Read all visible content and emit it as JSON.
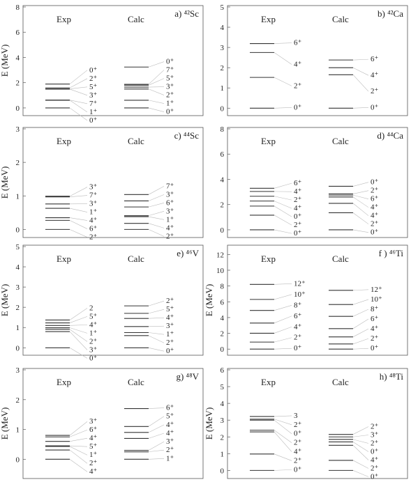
{
  "chart_data": [
    {
      "type": "level-scheme",
      "title": "a) ⁴²Sc",
      "ylabel": "E (MeV)",
      "ylim": [
        -0.5,
        8
      ],
      "yticks": [
        "0",
        "2",
        "4",
        "6",
        "8"
      ],
      "columns": [
        {
          "name": "Exp",
          "levels": [
            {
              "energy": 0.0,
              "spin": "0⁺"
            },
            {
              "energy": 0.61,
              "spin": "1⁺"
            },
            {
              "energy": 0.62,
              "spin": "7⁺"
            },
            {
              "energy": 1.49,
              "spin": "3⁺"
            },
            {
              "energy": 1.51,
              "spin": "5⁺"
            },
            {
              "energy": 1.59,
              "spin": "2⁺"
            },
            {
              "energy": 1.89,
              "spin": "0⁺"
            }
          ]
        },
        {
          "name": "Calc",
          "levels": [
            {
              "energy": 0.0,
              "spin": "0⁺"
            },
            {
              "energy": 0.61,
              "spin": "1⁺"
            },
            {
              "energy": 1.5,
              "spin": "2⁺"
            },
            {
              "energy": 1.65,
              "spin": "3⁺"
            },
            {
              "energy": 1.8,
              "spin": "5⁺"
            },
            {
              "energy": 1.87,
              "spin": "7⁺"
            },
            {
              "energy": 3.24,
              "spin": "0⁺"
            }
          ]
        }
      ]
    },
    {
      "type": "level-scheme",
      "title": "b) ⁴²Ca",
      "ylabel": "",
      "ylim": [
        -0.3,
        5
      ],
      "yticks": [
        "0",
        "1",
        "2",
        "3",
        "4",
        "5"
      ],
      "columns": [
        {
          "name": "Exp",
          "levels": [
            {
              "energy": 0.0,
              "spin": "0⁺"
            },
            {
              "energy": 1.52,
              "spin": "2⁺"
            },
            {
              "energy": 2.75,
              "spin": "4⁺"
            },
            {
              "energy": 3.19,
              "spin": "6⁺"
            }
          ]
        },
        {
          "name": "Calc",
          "levels": [
            {
              "energy": 0.0,
              "spin": "0⁺"
            },
            {
              "energy": 1.65,
              "spin": "2⁺"
            },
            {
              "energy": 2.0,
              "spin": "4⁺"
            },
            {
              "energy": 2.38,
              "spin": "6⁺"
            }
          ]
        }
      ]
    },
    {
      "type": "level-scheme",
      "title": "c) ⁴⁴Sc",
      "ylabel": "E (MeV)",
      "ylim": [
        -0.2,
        3
      ],
      "yticks": [
        "0",
        "1",
        "2",
        "3"
      ],
      "columns": [
        {
          "name": "Exp",
          "levels": [
            {
              "energy": 0.0,
              "spin": "2⁺"
            },
            {
              "energy": 0.27,
              "spin": "6⁺"
            },
            {
              "energy": 0.35,
              "spin": "4⁺"
            },
            {
              "energy": 0.63,
              "spin": "1⁺"
            },
            {
              "energy": 0.76,
              "spin": "3⁺"
            },
            {
              "energy": 0.97,
              "spin": "7⁺"
            },
            {
              "energy": 0.99,
              "spin": "3⁺"
            }
          ]
        },
        {
          "name": "Calc",
          "levels": [
            {
              "energy": 0.0,
              "spin": "2⁺"
            },
            {
              "energy": 0.18,
              "spin": "4⁺"
            },
            {
              "energy": 0.38,
              "spin": "1⁺"
            },
            {
              "energy": 0.41,
              "spin": "3⁺"
            },
            {
              "energy": 0.67,
              "spin": "6⁺"
            },
            {
              "energy": 0.85,
              "spin": "3⁺"
            },
            {
              "energy": 1.04,
              "spin": "7⁺"
            }
          ]
        }
      ]
    },
    {
      "type": "level-scheme",
      "title": "d) ⁴⁴Ca",
      "ylabel": "",
      "ylim": [
        -0.5,
        8
      ],
      "yticks": [
        "0",
        "2",
        "4",
        "6",
        "8"
      ],
      "columns": [
        {
          "name": "Exp",
          "levels": [
            {
              "energy": 0.0,
              "spin": "0⁺"
            },
            {
              "energy": 1.16,
              "spin": "2⁺"
            },
            {
              "energy": 1.88,
              "spin": "0⁺"
            },
            {
              "energy": 2.28,
              "spin": "4⁺"
            },
            {
              "energy": 2.66,
              "spin": "2⁺"
            },
            {
              "energy": 3.04,
              "spin": "4⁺"
            },
            {
              "energy": 3.29,
              "spin": "6⁺"
            }
          ]
        },
        {
          "name": "Calc",
          "levels": [
            {
              "energy": 0.0,
              "spin": "0⁺"
            },
            {
              "energy": 1.35,
              "spin": "2⁺"
            },
            {
              "energy": 2.1,
              "spin": "4⁺"
            },
            {
              "energy": 2.6,
              "spin": "4⁺"
            },
            {
              "energy": 2.75,
              "spin": "6⁺"
            },
            {
              "energy": 2.85,
              "spin": "2⁺"
            },
            {
              "energy": 3.45,
              "spin": "0⁺"
            }
          ]
        }
      ]
    },
    {
      "type": "level-scheme",
      "title": "e) ⁴⁶V",
      "ylabel": "E (MeV)",
      "ylim": [
        -0.3,
        5
      ],
      "yticks": [
        "0",
        "1",
        "2",
        "3",
        "4",
        "5"
      ],
      "columns": [
        {
          "name": "Exp",
          "levels": [
            {
              "energy": 0.0,
              "spin": "0⁺"
            },
            {
              "energy": 0.8,
              "spin": "3⁺"
            },
            {
              "energy": 0.91,
              "spin": "2⁺"
            },
            {
              "energy": 0.99,
              "spin": "1⁺"
            },
            {
              "energy": 1.1,
              "spin": "4⁺"
            },
            {
              "energy": 1.23,
              "spin": "5⁺"
            },
            {
              "energy": 1.37,
              "spin": "2"
            }
          ]
        },
        {
          "name": "Calc",
          "levels": [
            {
              "energy": 0.0,
              "spin": "0⁺"
            },
            {
              "energy": 0.6,
              "spin": "2⁺"
            },
            {
              "energy": 0.75,
              "spin": "1⁺"
            },
            {
              "energy": 1.05,
              "spin": "3⁺"
            },
            {
              "energy": 1.45,
              "spin": "4⁺"
            },
            {
              "energy": 1.7,
              "spin": "5⁺"
            },
            {
              "energy": 2.07,
              "spin": "2⁺"
            }
          ]
        }
      ]
    },
    {
      "type": "level-scheme",
      "title": "f ) ⁴⁶Ti",
      "ylabel": "E (MeV)",
      "ylim": [
        -0.6,
        13
      ],
      "yticks": [
        "0",
        "2",
        "4",
        "6",
        "8",
        "10",
        "12"
      ],
      "columns": [
        {
          "name": "Exp",
          "levels": [
            {
              "energy": 0.0,
              "spin": "0⁺"
            },
            {
              "energy": 0.89,
              "spin": "2⁺"
            },
            {
              "energy": 2.01,
              "spin": "4⁺"
            },
            {
              "energy": 3.3,
              "spin": "6⁺"
            },
            {
              "energy": 4.9,
              "spin": "8⁺"
            },
            {
              "energy": 6.3,
              "spin": "10⁺"
            },
            {
              "energy": 8.2,
              "spin": "12⁺"
            }
          ]
        },
        {
          "name": "Calc",
          "levels": [
            {
              "energy": 0.0,
              "spin": "0⁺"
            },
            {
              "energy": 0.65,
              "spin": "2⁺"
            },
            {
              "energy": 1.55,
              "spin": "4⁺"
            },
            {
              "energy": 2.6,
              "spin": "6⁺"
            },
            {
              "energy": 4.15,
              "spin": "8⁺"
            },
            {
              "energy": 5.65,
              "spin": "10⁺"
            },
            {
              "energy": 7.45,
              "spin": "12⁺"
            }
          ]
        }
      ]
    },
    {
      "type": "level-scheme",
      "title": "g) ⁴⁸V",
      "ylabel": "E (MeV)",
      "ylim": [
        -0.6,
        3
      ],
      "yticks": [
        "0",
        "1",
        "2",
        "3"
      ],
      "columns": [
        {
          "name": "Exp",
          "levels": [
            {
              "energy": 0.0,
              "spin": "4⁺"
            },
            {
              "energy": 0.31,
              "spin": "2⁺"
            },
            {
              "energy": 0.43,
              "spin": "1⁺"
            },
            {
              "energy": 0.45,
              "spin": "5⁺"
            },
            {
              "energy": 0.6,
              "spin": "4⁺"
            },
            {
              "energy": 0.75,
              "spin": "6⁺"
            },
            {
              "energy": 0.8,
              "spin": "3⁺"
            }
          ]
        },
        {
          "name": "Calc",
          "levels": [
            {
              "energy": 0.0,
              "spin": "1⁺"
            },
            {
              "energy": 0.25,
              "spin": "2⁺"
            },
            {
              "energy": 0.3,
              "spin": "3⁺"
            },
            {
              "energy": 0.7,
              "spin": "4⁺"
            },
            {
              "energy": 0.9,
              "spin": "4⁺"
            },
            {
              "energy": 1.1,
              "spin": "5⁺"
            },
            {
              "energy": 1.7,
              "spin": "6⁺"
            }
          ]
        }
      ]
    },
    {
      "type": "level-scheme",
      "title": "h) ⁴⁸Ti",
      "ylabel": "E (MeV)",
      "ylim": [
        -0.4,
        6
      ],
      "yticks": [
        "0",
        "1",
        "2",
        "3",
        "4",
        "5",
        "6"
      ],
      "columns": [
        {
          "name": "Exp",
          "levels": [
            {
              "energy": 0.0,
              "spin": "0⁺"
            },
            {
              "energy": 0.98,
              "spin": "2⁺"
            },
            {
              "energy": 2.3,
              "spin": "4⁺"
            },
            {
              "energy": 2.4,
              "spin": "2⁺"
            },
            {
              "energy": 3.0,
              "spin": "0⁺"
            },
            {
              "energy": 3.06,
              "spin": "2⁺"
            },
            {
              "energy": 3.22,
              "spin": "3"
            }
          ]
        },
        {
          "name": "Calc",
          "levels": [
            {
              "energy": 0.0,
              "spin": "0⁺"
            },
            {
              "energy": 0.6,
              "spin": "2⁺"
            },
            {
              "energy": 1.5,
              "spin": "4⁺"
            },
            {
              "energy": 1.7,
              "spin": "0⁺"
            },
            {
              "energy": 1.85,
              "spin": "2⁺"
            },
            {
              "energy": 2.0,
              "spin": "3⁺"
            },
            {
              "energy": 2.15,
              "spin": "2⁺"
            }
          ]
        }
      ]
    }
  ]
}
